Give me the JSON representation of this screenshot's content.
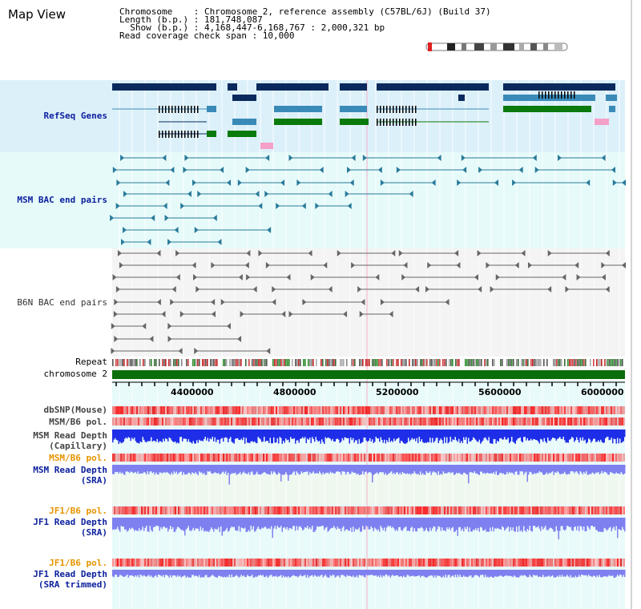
{
  "title": "Map View",
  "info": {
    "line1": "Chromosome    : Chromosome 2, reference assembly (C57BL/6J) (Build 37)",
    "line2": "Length (b.p.) : 181,748,087",
    "line3": "  Show (b.p.) : 4,168,447-6,168,767 : 2,000,321 bp",
    "line4": "Read coverage check span : 10,000"
  },
  "tracks": {
    "refseq": "RefSeq Genes",
    "msm_bac": "MSM BAC end pairs",
    "b6n_bac": "B6N BAC end pairs",
    "repeat": "Repeat",
    "chromosome": "chromosome 2",
    "dbsnp": "dbSNP(Mouse)",
    "msm_b6_pol_1": "MSM/B6 pol.",
    "msm_read_depth_cap_1": "MSM Read Depth",
    "msm_read_depth_cap_2": "(Capillary)",
    "msm_b6_pol_2": "MSM/B6 pol.",
    "msm_read_depth_sra_1": "MSM Read Depth",
    "msm_read_depth_sra_2": "(SRA)",
    "jf1_b6_pol_1": "JF1/B6 pol.",
    "jf1_read_depth_sra_1": "JF1 Read Depth",
    "jf1_read_depth_sra_2": "(SRA)",
    "jf1_b6_pol_2": "JF1/B6 pol.",
    "jf1_read_depth_trim_1": "JF1 Read Depth",
    "jf1_read_depth_trim_2": "(SRA trimmed)"
  },
  "axis": {
    "ticks": [
      "4400000",
      "4800000",
      "5200000",
      "5600000",
      "6000000"
    ]
  },
  "colors": {
    "refseq_bg": "#dcf0fa",
    "bac_bg": "#e6fafa",
    "gene_dark": "#0a2a5e",
    "gene_mid": "#3a8ab8",
    "gene_green": "#0a7a0a",
    "gene_pink": "#f4a0c8",
    "chrom_green": "#0a6e0a",
    "depth_blue": "#1e2ee8",
    "depth_light": "#7f80f0",
    "pol_red": "#f04040"
  }
}
